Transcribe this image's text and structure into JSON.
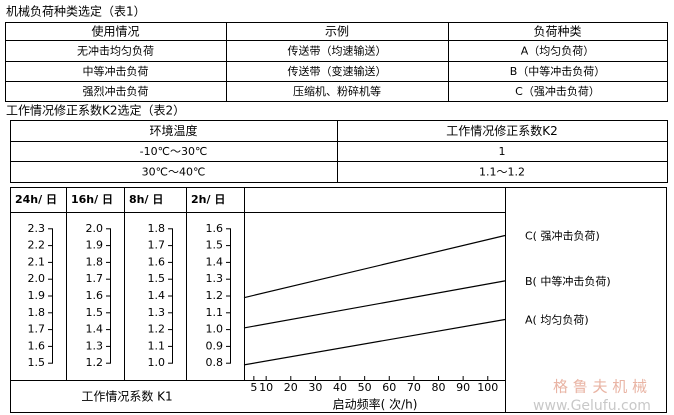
{
  "table1": {
    "title": "机械负荷种类选定（表1）",
    "header": [
      "使用情况",
      "示例",
      "负荷种类"
    ],
    "rows": [
      [
        "无冲击均匀负荷",
        "传送带（均速输送）",
        "A（均匀负荷）"
      ],
      [
        "中等冲击负荷",
        "传送带（变速输送）",
        "B（中等冲击负荷）"
      ],
      [
        "强烈冲击负荷",
        "压缩机、粉碎机等",
        "C（强冲击负荷）"
      ]
    ]
  },
  "table2": {
    "title": "工作情况修正系数K2选定（表2）",
    "header": [
      "环境温度",
      "工作情况修正系数K2"
    ],
    "rows": [
      [
        "-10℃～30℃",
        "1"
      ],
      [
        "30℃～40℃",
        "1.1～1.2"
      ]
    ]
  },
  "figure": {
    "type": "line",
    "scales": [
      {
        "label": "24h/ 日",
        "ylim": [
          1.4,
          2.4
        ],
        "ticks": [
          2.3,
          2.2,
          2.1,
          {
            "value": 2,
            "label": "2.0"
          },
          1.9,
          1.8,
          1.7,
          1.6,
          1.5
        ]
      },
      {
        "label": "16h/ 日",
        "ylim": [
          1.1,
          2.1
        ],
        "ticks": [
          {
            "value": 2,
            "label": "2.0"
          },
          1.9,
          1.8,
          1.7,
          1.6,
          1.5,
          1.4,
          1.3,
          1.2
        ]
      },
      {
        "label": "8h/ 日",
        "ylim": [
          0.9,
          1.9
        ],
        "ticks": [
          1.8,
          1.7,
          1.6,
          1.5,
          1.4,
          1.3,
          1.2,
          1.1,
          {
            "value": 1,
            "label": "1.0"
          }
        ]
      },
      {
        "label": "2h/ 日",
        "ylim": [
          0.7,
          1.7
        ],
        "ticks": [
          1.6,
          1.5,
          1.4,
          1.3,
          1.2,
          1.1,
          {
            "value": 1,
            "label": "1.0"
          },
          0.9,
          0.8
        ]
      }
    ],
    "y_label": "工作情况系数 K1",
    "x_label": "启动频率( 次/h)",
    "xlim": [
      1,
      107
    ],
    "xticks": [
      5,
      10,
      20,
      30,
      40,
      50,
      60,
      70,
      80,
      90,
      100
    ],
    "series": [
      {
        "name": "C( 强冲击负荷)",
        "color": "#000000",
        "x": [
          1,
          107
        ],
        "values": [
          1.19,
          1.56
        ]
      },
      {
        "name": "B( 中等冲击负荷)",
        "color": "#000000",
        "x": [
          1,
          107
        ],
        "values": [
          1.01,
          1.29
        ]
      },
      {
        "name": "A( 均匀负荷)",
        "color": "#000000",
        "x": [
          1,
          107
        ],
        "values": [
          0.79,
          1.06
        ]
      }
    ]
  },
  "watermark": {
    "brand": "格 鲁 夫 机 械",
    "url": "www.Gelufu.com"
  }
}
